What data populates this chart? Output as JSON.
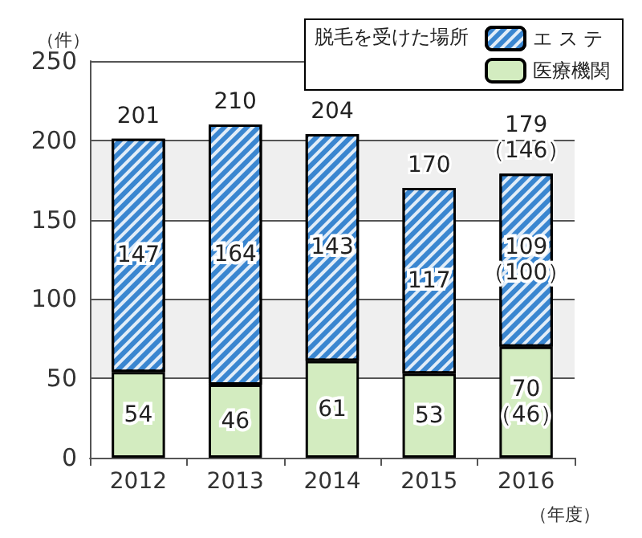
{
  "chart_data": {
    "type": "bar",
    "stacked": true,
    "ylabel": "（件）",
    "xlabel": "（年度）",
    "legend_title": "脱毛を受けた場所",
    "categories": [
      "2012",
      "2013",
      "2014",
      "2015",
      "2016"
    ],
    "series": [
      {
        "name": "医療機関",
        "color": "#d3ecc0",
        "values": [
          54,
          46,
          61,
          53,
          70
        ],
        "value_labels": [
          "54",
          "46",
          "61",
          "53",
          "70\n（46）"
        ]
      },
      {
        "name": "エ ス テ",
        "color": "#3a86d0",
        "values": [
          147,
          164,
          143,
          117,
          109
        ],
        "value_labels": [
          "147",
          "164",
          "143",
          "117",
          "109\n（100）"
        ]
      }
    ],
    "totals": [
      "201",
      "210",
      "204",
      "170",
      "179\n（146）"
    ],
    "ylim": [
      0,
      250
    ],
    "yticks": [
      0,
      50,
      100,
      150,
      200,
      250
    ],
    "grid": "y",
    "legend": "top right"
  }
}
